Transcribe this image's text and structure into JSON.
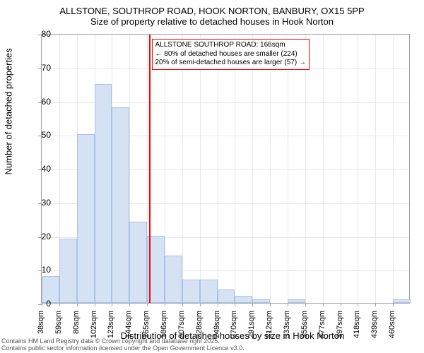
{
  "titles": {
    "main": "ALLSTONE, SOUTHROP ROAD, HOOK NORTON, BANBURY, OX15 5PP",
    "sub": "Size of property relative to detached houses in Hook Norton"
  },
  "axes": {
    "x_label": "Distribution of detached houses by size in Hook Norton",
    "y_label": "Number of detached properties",
    "y_min": 0,
    "y_max": 80,
    "y_tick_step": 10,
    "y_ticks": [
      0,
      10,
      20,
      30,
      40,
      50,
      60,
      70,
      80
    ]
  },
  "chart": {
    "type": "histogram",
    "bar_color": "#d4e2f4",
    "bar_border_color": "#a9c3e8",
    "grid_color": "#e8e8e8",
    "border_color": "#a0a0a0",
    "ref_line_color": "#ff0000",
    "annotation_border_color": "#ff0000",
    "background_color": "#ffffff",
    "bin_start": 38,
    "bin_step": 21,
    "bins": [
      {
        "label": "38sqm",
        "value": 8
      },
      {
        "label": "59sqm",
        "value": 19
      },
      {
        "label": "80sqm",
        "value": 50
      },
      {
        "label": "102sqm",
        "value": 65
      },
      {
        "label": "123sqm",
        "value": 58
      },
      {
        "label": "144sqm",
        "value": 24
      },
      {
        "label": "165sqm",
        "value": 20
      },
      {
        "label": "186sqm",
        "value": 14
      },
      {
        "label": "207sqm",
        "value": 7
      },
      {
        "label": "228sqm",
        "value": 7
      },
      {
        "label": "249sqm",
        "value": 4
      },
      {
        "label": "270sqm",
        "value": 2
      },
      {
        "label": "291sqm",
        "value": 1
      },
      {
        "label": "312sqm",
        "value": 0
      },
      {
        "label": "333sqm",
        "value": 1
      },
      {
        "label": "355sqm",
        "value": 0
      },
      {
        "label": "377sqm",
        "value": 0
      },
      {
        "label": "397sqm",
        "value": 0
      },
      {
        "label": "418sqm",
        "value": 0
      },
      {
        "label": "439sqm",
        "value": 0
      },
      {
        "label": "460sqm",
        "value": 1
      }
    ],
    "reference_value_sqm": 166
  },
  "annotation": {
    "line1": "ALLSTONE SOUTHROP ROAD: 166sqm",
    "line2": "← 80% of detached houses are smaller (224)",
    "line3": "20% of semi-detached houses are larger (57) →"
  },
  "footer": {
    "line1": "Contains HM Land Registry data © Crown copyright and database right 2025.",
    "line2": "Contains public sector information licensed under the Open Government Licence v3.0."
  }
}
